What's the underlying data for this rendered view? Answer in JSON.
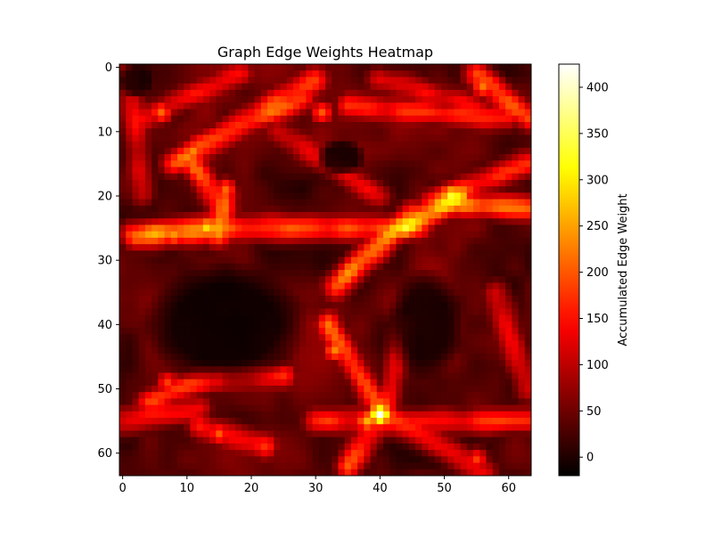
{
  "chart_data": {
    "type": "heatmap",
    "title": "Graph Edge Weights Heatmap",
    "xlabel": "",
    "ylabel": "",
    "grid_size": [
      64,
      64
    ],
    "x_ticks": [
      0,
      10,
      20,
      30,
      40,
      50,
      60
    ],
    "y_ticks": [
      0,
      10,
      20,
      30,
      40,
      50,
      60
    ],
    "x_range": [
      -0.5,
      63.5
    ],
    "y_range": [
      -0.5,
      63.5
    ],
    "y_inverted": true,
    "colormap": "hot",
    "colorbar": {
      "label": "Accumulated Edge Weight",
      "range": [
        -20,
        425
      ],
      "ticks": [
        0,
        50,
        100,
        150,
        200,
        250,
        300,
        350,
        400
      ],
      "colors": [
        "#000000",
        "#ff0000",
        "#ffff00",
        "#ffffff"
      ]
    },
    "grid": false,
    "background_level": 30,
    "streaks": [
      {
        "from": [
          2,
          26
        ],
        "to": [
          16,
          25
        ],
        "level": 230
      },
      {
        "from": [
          13,
          25
        ],
        "to": [
          46,
          25
        ],
        "level": 180
      },
      {
        "from": [
          10,
          14
        ],
        "to": [
          16,
          22
        ],
        "level": 180
      },
      {
        "from": [
          16,
          20
        ],
        "to": [
          15,
          26
        ],
        "level": 190
      },
      {
        "from": [
          8,
          15
        ],
        "to": [
          30,
          2
        ],
        "level": 170
      },
      {
        "from": [
          12,
          12
        ],
        "to": [
          28,
          5
        ],
        "level": 150
      },
      {
        "from": [
          3,
          8
        ],
        "to": [
          18,
          1
        ],
        "level": 120
      },
      {
        "from": [
          35,
          6
        ],
        "to": [
          60,
          8
        ],
        "level": 140
      },
      {
        "from": [
          40,
          2
        ],
        "to": [
          55,
          6
        ],
        "level": 110
      },
      {
        "from": [
          55,
          1
        ],
        "to": [
          63,
          8
        ],
        "level": 200
      },
      {
        "from": [
          50,
          21
        ],
        "to": [
          63,
          22
        ],
        "level": 190
      },
      {
        "from": [
          45,
          23
        ],
        "to": [
          33,
          34
        ],
        "level": 200
      },
      {
        "from": [
          52,
          20
        ],
        "to": [
          44,
          25
        ],
        "level": 220
      },
      {
        "from": [
          48,
          21
        ],
        "to": [
          63,
          15
        ],
        "level": 140
      },
      {
        "from": [
          32,
          40
        ],
        "to": [
          40,
          53
        ],
        "level": 190
      },
      {
        "from": [
          40,
          54
        ],
        "to": [
          35,
          62
        ],
        "level": 180
      },
      {
        "from": [
          30,
          55
        ],
        "to": [
          63,
          55
        ],
        "level": 150
      },
      {
        "from": [
          41,
          54
        ],
        "to": [
          56,
          63
        ],
        "level": 150
      },
      {
        "from": [
          41,
          53
        ],
        "to": [
          44,
          40
        ],
        "level": 130
      },
      {
        "from": [
          4,
          52
        ],
        "to": [
          14,
          48
        ],
        "level": 160
      },
      {
        "from": [
          15,
          48
        ],
        "to": [
          25,
          48
        ],
        "level": 150
      },
      {
        "from": [
          0,
          55
        ],
        "to": [
          12,
          53
        ],
        "level": 130
      },
      {
        "from": [
          12,
          56
        ],
        "to": [
          22,
          59
        ],
        "level": 140
      },
      {
        "from": [
          1,
          1
        ],
        "to": [
          3,
          20
        ],
        "level": 100
      },
      {
        "from": [
          58,
          35
        ],
        "to": [
          63,
          50
        ],
        "level": 110
      },
      {
        "from": [
          24,
          10
        ],
        "to": [
          40,
          20
        ],
        "level": 110
      }
    ],
    "hotspots": [
      {
        "x": 40,
        "y": 54,
        "value": 420
      },
      {
        "x": 51,
        "y": 20,
        "value": 330
      },
      {
        "x": 13,
        "y": 25,
        "value": 290
      },
      {
        "x": 8,
        "y": 26,
        "value": 240
      },
      {
        "x": 44,
        "y": 25,
        "value": 260
      },
      {
        "x": 11,
        "y": 13,
        "value": 230
      },
      {
        "x": 6,
        "y": 7,
        "value": 210
      },
      {
        "x": 31,
        "y": 7,
        "value": 200
      },
      {
        "x": 33,
        "y": 44,
        "value": 230
      },
      {
        "x": 16,
        "y": 19,
        "value": 210
      },
      {
        "x": 56,
        "y": 3,
        "value": 220
      },
      {
        "x": 15,
        "y": 57,
        "value": 200
      },
      {
        "x": 7,
        "y": 49,
        "value": 180
      },
      {
        "x": 55,
        "y": 61,
        "value": 180
      },
      {
        "x": 38,
        "y": 55,
        "value": 260
      }
    ],
    "cold_regions": [
      {
        "x": 16,
        "y": 40,
        "rx": 13,
        "ry": 10,
        "level": -15
      },
      {
        "x": 47,
        "y": 40,
        "rx": 6,
        "ry": 9,
        "level": -10
      },
      {
        "x": 34,
        "y": 14,
        "rx": 4,
        "ry": 3,
        "level": -10
      },
      {
        "x": 2,
        "y": 2,
        "rx": 3,
        "ry": 3,
        "level": -10
      }
    ]
  }
}
